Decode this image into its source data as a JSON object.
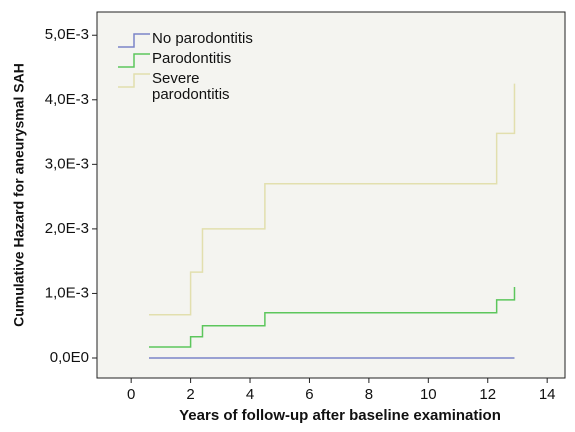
{
  "chart_data": {
    "type": "step",
    "xlabel": "Years of follow-up after baseline examination",
    "ylabel": "Cumulative Hazard for aneurysmal SAH",
    "xlim": [
      -1.15,
      14.6
    ],
    "xticks": [
      0,
      2,
      4,
      6,
      8,
      10,
      12,
      14
    ],
    "ylim": [
      -0.00031,
      0.00536
    ],
    "yticks": [
      {
        "value": 0,
        "label": "0,0E0"
      },
      {
        "value": 0.001,
        "label": "1,0E-3"
      },
      {
        "value": 0.002,
        "label": "2,0E-3"
      },
      {
        "value": 0.003,
        "label": "3,0E-3"
      },
      {
        "value": 0.004,
        "label": "4,0E-3"
      },
      {
        "value": 0.005,
        "label": "5,0E-3"
      }
    ],
    "legend": "top-left",
    "series": [
      {
        "name": "No parodontitis",
        "color": "#7b84c8",
        "x": [
          0.6,
          12.9
        ],
        "values": [
          0,
          0
        ]
      },
      {
        "name": "Parodontitis",
        "color": "#5cc65c",
        "x": [
          0.6,
          2.0,
          2.4,
          4.5,
          12.3,
          12.9
        ],
        "values": [
          0.00017,
          0.00033,
          0.0005,
          0.0007,
          0.0009,
          0.0011
        ]
      },
      {
        "name": "Severe parodontitis",
        "color": "#e2dfae",
        "x": [
          0.6,
          2.0,
          2.4,
          4.5,
          12.3,
          12.9
        ],
        "values": [
          0.00067,
          0.00133,
          0.002,
          0.0027,
          0.00348,
          0.00425
        ]
      }
    ]
  }
}
